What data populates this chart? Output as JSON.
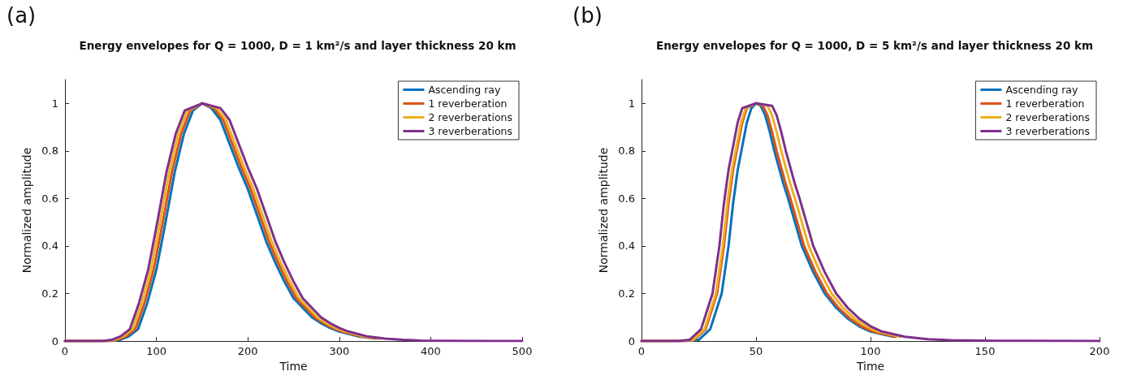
{
  "chart_data": [
    {
      "type": "line",
      "title": "Energy envelopes for Q = 1000, D = 1 km²/s and layer thickness 20 km",
      "xlabel": "Time",
      "ylabel": "Normalized amplitude",
      "annotations": [
        "(a)"
      ],
      "xlim": [
        0,
        500
      ],
      "xticks": [
        0,
        100,
        200,
        300,
        400,
        500
      ],
      "ylim": [
        0,
        1.1
      ],
      "yticks": [
        0,
        0.2,
        0.4,
        0.6,
        0.8,
        1
      ],
      "grid": false,
      "legend": "top right",
      "marker": "none",
      "line_style": "solid",
      "series": [
        {
          "name": "Ascending ray",
          "color": "#0072bd",
          "x": [
            0,
            50,
            60,
            70,
            80,
            90,
            100,
            110,
            120,
            130,
            140,
            150,
            160,
            170,
            180,
            190,
            200,
            210,
            220,
            230,
            240,
            250,
            260,
            270,
            280,
            290,
            300,
            320,
            340
          ],
          "values": [
            0,
            0,
            0.005,
            0.02,
            0.05,
            0.16,
            0.3,
            0.5,
            0.71,
            0.87,
            0.97,
            1,
            0.98,
            0.93,
            0.83,
            0.73,
            0.64,
            0.53,
            0.42,
            0.33,
            0.25,
            0.18,
            0.14,
            0.1,
            0.075,
            0.055,
            0.04,
            0.02,
            0.01
          ]
        },
        {
          "name": "1 reverberation",
          "color": "#d95319",
          "x": [
            0,
            47,
            57,
            67,
            77,
            87,
            97,
            107,
            117,
            127,
            137,
            150,
            163,
            173,
            183,
            193,
            203,
            213,
            223,
            233,
            243,
            253,
            263,
            273,
            283,
            293,
            303,
            323,
            343
          ],
          "values": [
            0,
            0,
            0.005,
            0.02,
            0.05,
            0.16,
            0.3,
            0.5,
            0.71,
            0.87,
            0.97,
            1,
            0.98,
            0.93,
            0.83,
            0.73,
            0.64,
            0.53,
            0.42,
            0.33,
            0.25,
            0.18,
            0.14,
            0.1,
            0.075,
            0.055,
            0.04,
            0.02,
            0.01
          ]
        },
        {
          "name": "2 reverberations",
          "color": "#edb120",
          "x": [
            0,
            44,
            54,
            64,
            74,
            84,
            94,
            104,
            114,
            124,
            134,
            150,
            166,
            176,
            186,
            196,
            206,
            216,
            226,
            236,
            246,
            256,
            266,
            276,
            286,
            296,
            306,
            326,
            346
          ],
          "values": [
            0,
            0,
            0.005,
            0.02,
            0.05,
            0.16,
            0.3,
            0.5,
            0.71,
            0.87,
            0.97,
            1,
            0.98,
            0.93,
            0.83,
            0.73,
            0.64,
            0.53,
            0.42,
            0.33,
            0.25,
            0.18,
            0.14,
            0.1,
            0.075,
            0.055,
            0.04,
            0.02,
            0.01
          ]
        },
        {
          "name": "3 reverberations",
          "color": "#7e2f8e",
          "x": [
            0,
            41,
            51,
            61,
            71,
            81,
            91,
            101,
            111,
            121,
            131,
            150,
            170,
            180,
            190,
            200,
            210,
            220,
            230,
            240,
            250,
            260,
            270,
            280,
            290,
            300,
            310,
            330,
            350,
            370,
            390,
            410,
            460,
            500
          ],
          "values": [
            0,
            0,
            0.005,
            0.02,
            0.05,
            0.16,
            0.3,
            0.5,
            0.71,
            0.87,
            0.97,
            1,
            0.98,
            0.93,
            0.83,
            0.73,
            0.64,
            0.53,
            0.42,
            0.33,
            0.25,
            0.18,
            0.14,
            0.1,
            0.075,
            0.055,
            0.04,
            0.02,
            0.01,
            0.005,
            0.002,
            0.001,
            0,
            0
          ]
        }
      ]
    },
    {
      "type": "line",
      "title": "Energy envelopes for Q = 1000, D = 5 km²/s and layer thickness 20 km",
      "xlabel": "Time",
      "ylabel": "Normalized amplitude",
      "annotations": [
        "(b)"
      ],
      "xlim": [
        0,
        200
      ],
      "xticks": [
        0,
        50,
        100,
        150,
        200
      ],
      "ylim": [
        0,
        1.1
      ],
      "yticks": [
        0,
        0.2,
        0.4,
        0.6,
        0.8,
        1
      ],
      "grid": false,
      "legend": "top right",
      "marker": "none",
      "line_style": "solid",
      "series": [
        {
          "name": "Ascending ray",
          "color": "#0072bd",
          "x": [
            0,
            20,
            25,
            30,
            35,
            38,
            40,
            42,
            44,
            46,
            48,
            50,
            52,
            54,
            56,
            58,
            60,
            62,
            64,
            67,
            70,
            75,
            80,
            85,
            90,
            95,
            100,
            110
          ],
          "values": [
            0,
            0,
            0.005,
            0.05,
            0.2,
            0.4,
            0.58,
            0.72,
            0.82,
            0.92,
            0.98,
            1,
            0.99,
            0.95,
            0.88,
            0.8,
            0.73,
            0.66,
            0.6,
            0.5,
            0.4,
            0.29,
            0.2,
            0.14,
            0.095,
            0.062,
            0.04,
            0.018
          ]
        },
        {
          "name": "1 reverberation",
          "color": "#d95319",
          "x": [
            0,
            18,
            23,
            28,
            33,
            36,
            38,
            40,
            42,
            44,
            46,
            50,
            53,
            55,
            57,
            59,
            61,
            63,
            65,
            68,
            71,
            76,
            81,
            86,
            91,
            96,
            101,
            111
          ],
          "values": [
            0,
            0,
            0.005,
            0.05,
            0.2,
            0.4,
            0.58,
            0.72,
            0.82,
            0.92,
            0.98,
            1,
            0.99,
            0.95,
            0.88,
            0.8,
            0.73,
            0.66,
            0.6,
            0.5,
            0.4,
            0.29,
            0.2,
            0.14,
            0.095,
            0.062,
            0.04,
            0.018
          ]
        },
        {
          "name": "2 reverberations",
          "color": "#edb120",
          "x": [
            0,
            17.5,
            22.5,
            27.5,
            32.5,
            35.5,
            37.5,
            39.5,
            41.5,
            43.5,
            45.5,
            50,
            55,
            57,
            59,
            61,
            63,
            65,
            67,
            70,
            73,
            78,
            83,
            88,
            93,
            98,
            103,
            113
          ],
          "values": [
            0,
            0,
            0.005,
            0.05,
            0.2,
            0.4,
            0.58,
            0.72,
            0.82,
            0.92,
            0.98,
            1,
            0.99,
            0.95,
            0.88,
            0.8,
            0.73,
            0.66,
            0.6,
            0.5,
            0.4,
            0.29,
            0.2,
            0.14,
            0.095,
            0.062,
            0.04,
            0.018
          ]
        },
        {
          "name": "3 reverberations",
          "color": "#7e2f8e",
          "x": [
            0,
            16,
            21,
            26,
            31,
            34,
            36,
            38,
            40,
            42,
            44,
            50,
            57,
            59,
            61,
            63,
            65,
            67,
            69,
            72,
            75,
            80,
            85,
            90,
            95,
            100,
            105,
            115,
            125,
            135,
            155,
            200
          ],
          "values": [
            0,
            0,
            0.005,
            0.05,
            0.2,
            0.4,
            0.58,
            0.72,
            0.82,
            0.92,
            0.98,
            1,
            0.99,
            0.95,
            0.88,
            0.8,
            0.73,
            0.66,
            0.6,
            0.5,
            0.4,
            0.29,
            0.2,
            0.14,
            0.095,
            0.062,
            0.04,
            0.018,
            0.008,
            0.003,
            0.001,
            0
          ]
        }
      ]
    }
  ]
}
